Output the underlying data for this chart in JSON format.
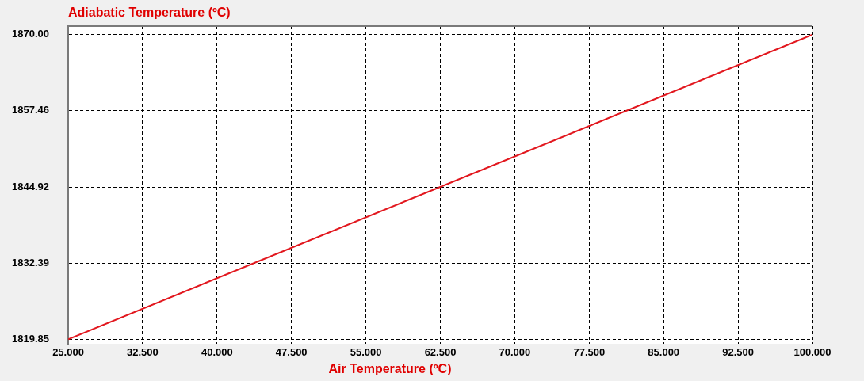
{
  "chart_data": {
    "type": "line",
    "title": "Adiabatic Temperature (ºC)",
    "xlabel": "Air Temperature (ºC)",
    "x": [
      25,
      100
    ],
    "values": [
      1819.85,
      1870.0
    ],
    "color": "#e2171e",
    "xlim": [
      25,
      100
    ],
    "ylim": [
      1819.1,
      1871.4
    ],
    "xticks": [
      {
        "value": 25,
        "label": "25.000"
      },
      {
        "value": 32.5,
        "label": "32.500"
      },
      {
        "value": 40,
        "label": "40.000"
      },
      {
        "value": 47.5,
        "label": "47.500"
      },
      {
        "value": 55,
        "label": "55.000"
      },
      {
        "value": 62.5,
        "label": "62.500"
      },
      {
        "value": 70,
        "label": "70.000"
      },
      {
        "value": 77.5,
        "label": "77.500"
      },
      {
        "value": 85,
        "label": "85.000"
      },
      {
        "value": 92.5,
        "label": "92.500"
      },
      {
        "value": 100,
        "label": "100.000"
      }
    ],
    "yticks": [
      {
        "value": 1819.85,
        "label": "1819.85"
      },
      {
        "value": 1832.39,
        "label": "1832.39"
      },
      {
        "value": 1844.92,
        "label": "1844.92"
      },
      {
        "value": 1857.46,
        "label": "1857.46"
      },
      {
        "value": 1870.0,
        "label": "1870.00"
      }
    ],
    "grid": true,
    "marker": "none",
    "line_style": "solid"
  }
}
